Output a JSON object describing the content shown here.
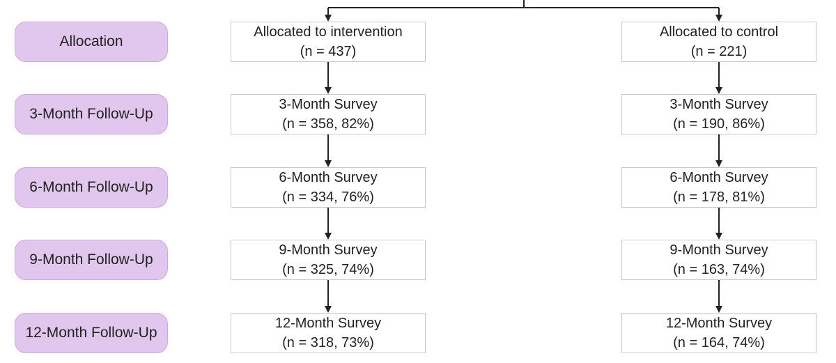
{
  "stages": [
    "Allocation",
    "3-Month Follow-Up",
    "6-Month Follow-Up",
    "9-Month Follow-Up",
    "12-Month Follow-Up"
  ],
  "arms": {
    "intervention": [
      {
        "title": "Allocated to intervention",
        "count": "(n = 437)"
      },
      {
        "title": "3-Month Survey",
        "count": "(n = 358, 82%)"
      },
      {
        "title": "6-Month Survey",
        "count": "(n = 334, 76%)"
      },
      {
        "title": "9-Month Survey",
        "count": "(n = 325, 74%)"
      },
      {
        "title": "12-Month Survey",
        "count": "(n = 318, 73%)"
      }
    ],
    "control": [
      {
        "title": "Allocated to control",
        "count": "(n = 221)"
      },
      {
        "title": "3-Month Survey",
        "count": "(n = 190, 86%)"
      },
      {
        "title": "6-Month Survey",
        "count": "(n = 178, 81%)"
      },
      {
        "title": "9-Month Survey",
        "count": "(n = 163, 74%)"
      },
      {
        "title": "12-Month Survey",
        "count": "(n = 164, 74%)"
      }
    ]
  },
  "colors": {
    "stage_fill": "#e1c6ee",
    "stage_border": "#cba9dc",
    "node_border": "#c8c8c8",
    "connector": "#222222"
  }
}
